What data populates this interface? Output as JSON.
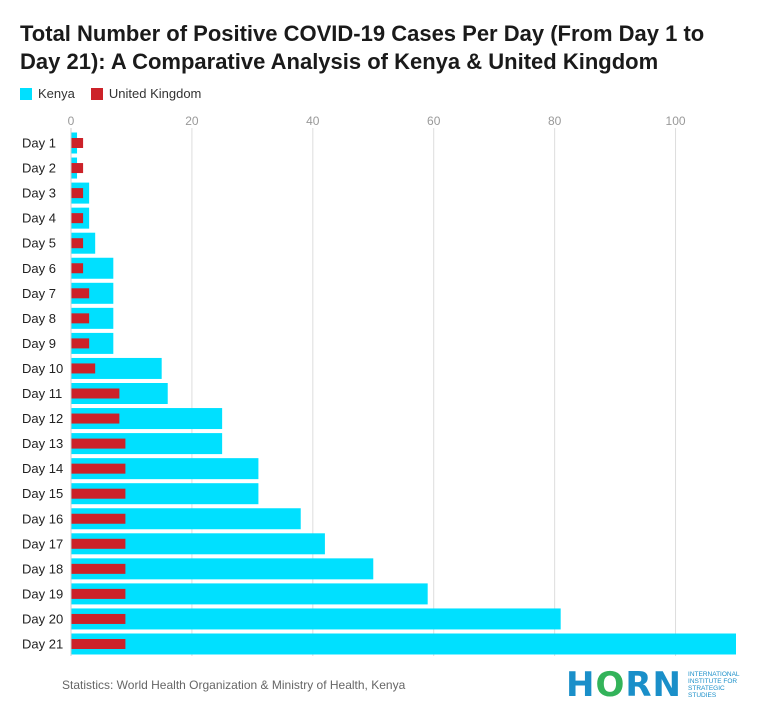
{
  "title": "Total Number of Positive COVID-19 Cases Per Day (From Day 1 to Day 21): A Comparative Analysis of Kenya & United Kingdom",
  "legend": [
    {
      "name": "Kenya",
      "color": "#00e0ff"
    },
    {
      "name": "United Kingdom",
      "color": "#cc2229"
    }
  ],
  "footer": "Statistics: World Health Organization & Ministry of Health, Kenya",
  "logo": {
    "mark_h": "H",
    "mark_o": "O",
    "mark_rn": "RN",
    "text": "International Institute for Strategic Studies"
  },
  "chart_data": {
    "type": "bar",
    "orientation": "horizontal",
    "categories": [
      "Day 1",
      "Day 2",
      "Day 3",
      "Day 4",
      "Day 5",
      "Day 6",
      "Day 7",
      "Day 8",
      "Day 9",
      "Day 10",
      "Day 11",
      "Day 12",
      "Day 13",
      "Day 14",
      "Day 15",
      "Day 16",
      "Day 17",
      "Day 18",
      "Day 19",
      "Day 20",
      "Day 21"
    ],
    "series": [
      {
        "name": "Kenya",
        "color": "#00e0ff",
        "values": [
          1,
          1,
          3,
          3,
          4,
          7,
          7,
          7,
          7,
          15,
          16,
          25,
          25,
          31,
          31,
          38,
          42,
          50,
          59,
          81,
          110
        ]
      },
      {
        "name": "United Kingdom",
        "color": "#cc2229",
        "values": [
          2,
          2,
          2,
          2,
          2,
          2,
          3,
          3,
          3,
          4,
          8,
          8,
          9,
          9,
          9,
          9,
          9,
          9,
          9,
          9,
          9
        ]
      }
    ],
    "xlim": [
      0,
      110
    ],
    "xticks": [
      0,
      20,
      40,
      60,
      80,
      100
    ],
    "grid": true,
    "legend_position": "top-left"
  }
}
